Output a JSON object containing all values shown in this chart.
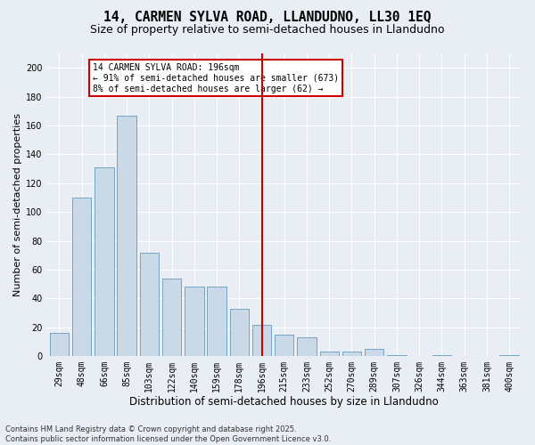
{
  "title_line1": "14, CARMEN SYLVA ROAD, LLANDUDNO, LL30 1EQ",
  "title_line2": "Size of property relative to semi-detached houses in Llandudno",
  "xlabel": "Distribution of semi-detached houses by size in Llandudno",
  "ylabel": "Number of semi-detached properties",
  "categories": [
    "29sqm",
    "48sqm",
    "66sqm",
    "85sqm",
    "103sqm",
    "122sqm",
    "140sqm",
    "159sqm",
    "178sqm",
    "196sqm",
    "215sqm",
    "233sqm",
    "252sqm",
    "270sqm",
    "289sqm",
    "307sqm",
    "326sqm",
    "344sqm",
    "363sqm",
    "381sqm",
    "400sqm"
  ],
  "values": [
    16,
    110,
    131,
    167,
    72,
    54,
    48,
    48,
    33,
    22,
    15,
    13,
    3,
    3,
    5,
    1,
    0,
    1,
    0,
    0,
    1
  ],
  "bar_color": "#c9d9e8",
  "bar_edge_color": "#6699bb",
  "highlight_index": 9,
  "vline_color": "#cc0000",
  "annotation_text": "14 CARMEN SYLVA ROAD: 196sqm\n← 91% of semi-detached houses are smaller (673)\n8% of semi-detached houses are larger (62) →",
  "annotation_box_color": "#ffffff",
  "annotation_box_edge": "#cc0000",
  "ylim": [
    0,
    210
  ],
  "yticks": [
    0,
    20,
    40,
    60,
    80,
    100,
    120,
    140,
    160,
    180,
    200
  ],
  "bg_color": "#e8eef4",
  "footnote": "Contains HM Land Registry data © Crown copyright and database right 2025.\nContains public sector information licensed under the Open Government Licence v3.0.",
  "title1_fontsize": 10.5,
  "title2_fontsize": 9,
  "xlabel_fontsize": 8.5,
  "ylabel_fontsize": 8,
  "tick_fontsize": 7,
  "annot_fontsize": 7,
  "footnote_fontsize": 6
}
